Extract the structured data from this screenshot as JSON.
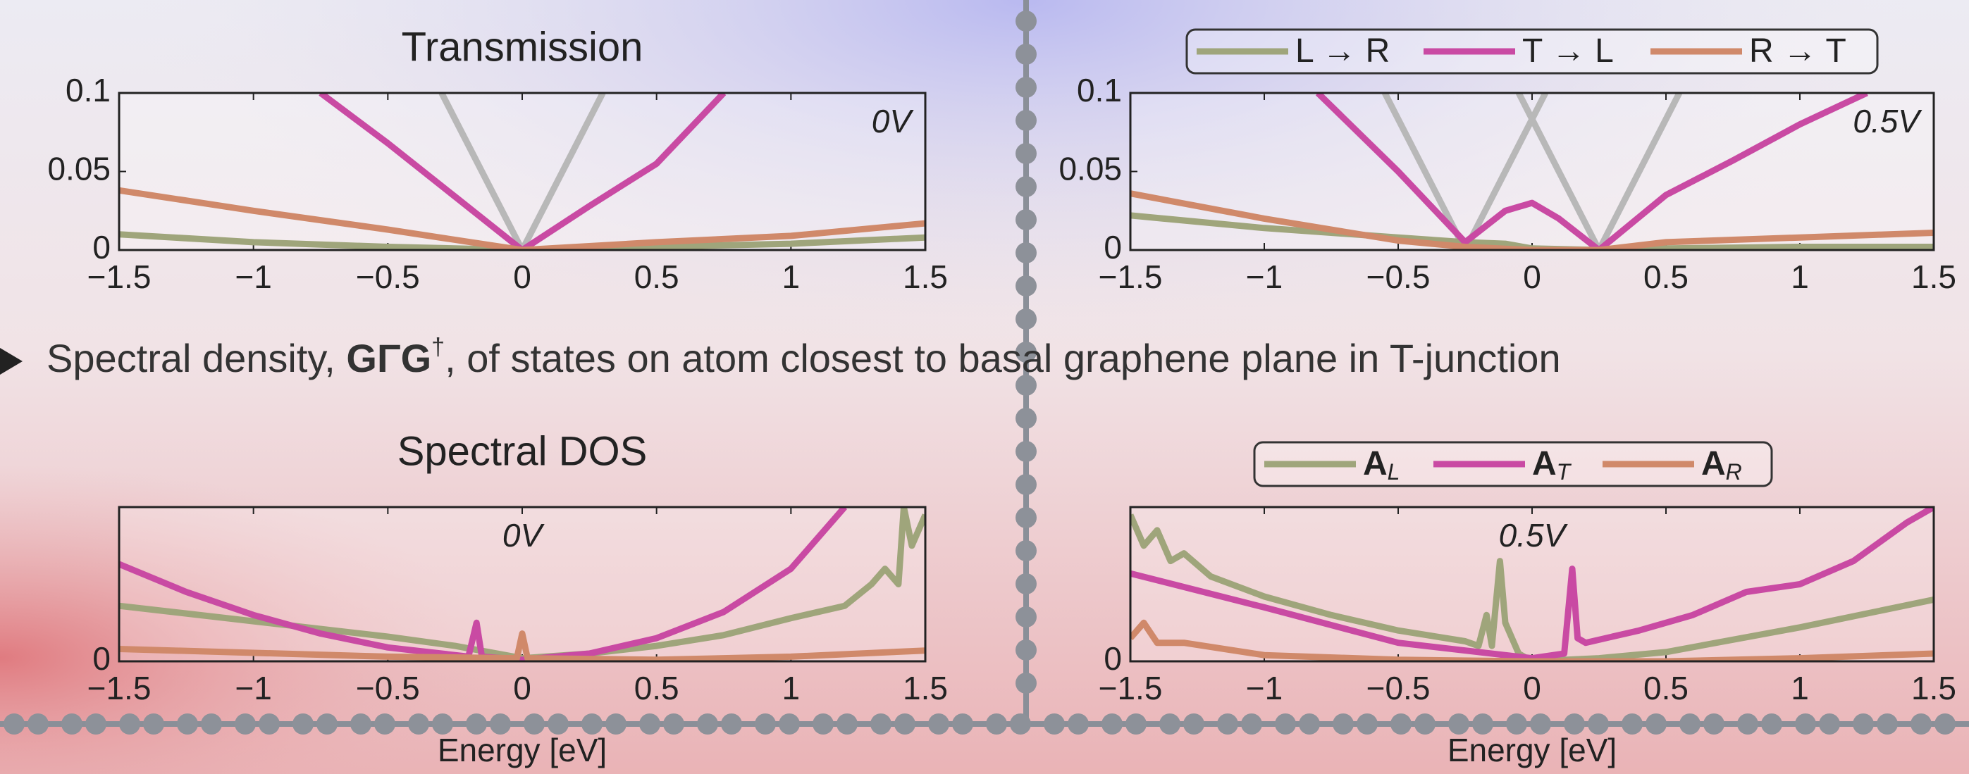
{
  "bullet": {
    "parts": [
      "Spectral density, ",
      "GΓG",
      "†",
      ", of states on atom closest to basal graphene plane in T-junction"
    ]
  },
  "chart_data": [
    {
      "type": "line",
      "title": "Transmission",
      "annotation": "0V",
      "xlim": [
        -1.5,
        1.5
      ],
      "ylim": [
        0,
        0.1
      ],
      "xticks": [
        {
          "value": -1.5,
          "label": "−1.5"
        },
        {
          "value": -1,
          "label": "−1"
        },
        {
          "value": -0.5,
          "label": "−0.5"
        },
        0,
        0.5,
        1,
        1.5
      ],
      "yticks": [
        0,
        0.05,
        0.1
      ],
      "series": [
        {
          "color": "#b8b8b8",
          "x": [
            -0.3,
            0
          ],
          "values": [
            0.1,
            0
          ]
        },
        {
          "color": "#b8b8b8",
          "x": [
            0,
            0.3
          ],
          "values": [
            0,
            0.1
          ]
        },
        {
          "color": "#9fa57b",
          "x": [
            -1.5,
            -1,
            -0.5,
            0,
            0.5,
            1,
            1.5
          ],
          "values": [
            0.01,
            0.005,
            0.002,
            0,
            0.002,
            0.004,
            0.008
          ]
        },
        {
          "color": "#c94aa3",
          "x": [
            -0.75,
            -0.5,
            -0.25,
            0,
            0.25,
            0.5,
            0.75
          ],
          "values": [
            0.1,
            0.068,
            0.034,
            0,
            0.028,
            0.055,
            0.1
          ]
        },
        {
          "color": "#d0896a",
          "x": [
            -1.5,
            -1,
            -0.5,
            0,
            0.5,
            1,
            1.5
          ],
          "values": [
            0.038,
            0.025,
            0.013,
            0,
            0.005,
            0.009,
            0.017
          ]
        }
      ]
    },
    {
      "type": "line",
      "annotation": "0.5V",
      "legend": "top",
      "xlim": [
        -1.5,
        1.5
      ],
      "ylim": [
        0,
        0.1
      ],
      "xticks": [
        {
          "value": -1.5,
          "label": "−1.5"
        },
        {
          "value": -1,
          "label": "−1"
        },
        {
          "value": -0.5,
          "label": "−0.5"
        },
        0,
        0.5,
        1,
        1.5
      ],
      "yticks": [
        0,
        0.05,
        0.1
      ],
      "series": [
        {
          "color": "#b8b8b8",
          "x": [
            -0.55,
            -0.25,
            0.05
          ],
          "values": [
            0.1,
            0,
            0.1
          ]
        },
        {
          "color": "#b8b8b8",
          "x": [
            -0.05,
            0.25,
            0.55
          ],
          "values": [
            0.1,
            0,
            0.1
          ]
        },
        {
          "name": "L → R",
          "color": "#9fa57b",
          "x": [
            -1.5,
            -1,
            -0.5,
            -0.25,
            -0.1,
            0,
            0.25,
            0.5,
            1,
            1.5
          ],
          "values": [
            0.022,
            0.014,
            0.008,
            0.005,
            0.004,
            0.001,
            0,
            0.001,
            0.002,
            0.002
          ]
        },
        {
          "name": "T → L",
          "color": "#c94aa3",
          "x": [
            -0.8,
            -0.5,
            -0.25,
            -0.1,
            0,
            0.1,
            0.25,
            0.5,
            0.75,
            1,
            1.25
          ],
          "values": [
            0.1,
            0.05,
            0.005,
            0.025,
            0.03,
            0.02,
            0,
            0.035,
            0.057,
            0.08,
            0.1
          ]
        },
        {
          "name": "R → T",
          "color": "#d0896a",
          "x": [
            -1.5,
            -1,
            -0.5,
            -0.25,
            0,
            0.25,
            0.5,
            1,
            1.5
          ],
          "values": [
            0.036,
            0.02,
            0.006,
            0.002,
            0,
            0,
            0.005,
            0.008,
            0.011
          ]
        }
      ]
    },
    {
      "type": "line",
      "title": "Spectral DOS",
      "annotation": "0V",
      "x_label": "Energy [eV]",
      "xlim": [
        -1.5,
        1.5
      ],
      "ylim": [
        0,
        1
      ],
      "xticks": [
        {
          "value": -1.5,
          "label": "−1.5"
        },
        {
          "value": -1,
          "label": "−1"
        },
        {
          "value": -0.5,
          "label": "−0.5"
        },
        0,
        0.5,
        1,
        1.5
      ],
      "yticks": [
        0
      ],
      "series": [
        {
          "color": "#9fa57b",
          "x": [
            -1.5,
            -1,
            -0.5,
            -0.25,
            0,
            0.25,
            0.5,
            0.75,
            1,
            1.2,
            1.3,
            1.35,
            1.4,
            1.42,
            1.45,
            1.5
          ],
          "values": [
            0.36,
            0.26,
            0.16,
            0.1,
            0.02,
            0.05,
            0.1,
            0.17,
            0.28,
            0.36,
            0.5,
            0.6,
            0.5,
            1.0,
            0.75,
            0.95
          ]
        },
        {
          "color": "#c94aa3",
          "x": [
            -1.5,
            -1.25,
            -1,
            -0.75,
            -0.5,
            -0.25,
            -0.2,
            -0.17,
            -0.15,
            0,
            0.25,
            0.5,
            0.75,
            1,
            1.2
          ],
          "values": [
            0.63,
            0.45,
            0.3,
            0.18,
            0.09,
            0.04,
            0.03,
            0.25,
            0.03,
            0.01,
            0.05,
            0.15,
            0.32,
            0.6,
            1.0
          ]
        },
        {
          "color": "#d0896a",
          "x": [
            -1.5,
            -0.5,
            -0.02,
            0,
            0.02,
            0.5,
            1,
            1.5
          ],
          "values": [
            0.08,
            0.03,
            0.02,
            0.18,
            0.02,
            0.01,
            0.03,
            0.07
          ]
        }
      ]
    },
    {
      "type": "line",
      "annotation": "0.5V",
      "x_label": "Energy [eV]",
      "legend": "top",
      "xlim": [
        -1.5,
        1.5
      ],
      "ylim": [
        0,
        1
      ],
      "xticks": [
        {
          "value": -1.5,
          "label": "−1.5"
        },
        {
          "value": -1,
          "label": "−1"
        },
        {
          "value": -0.5,
          "label": "−0.5"
        },
        0,
        0.5,
        1,
        1.5
      ],
      "yticks": [
        0
      ],
      "series": [
        {
          "name": "A",
          "subscript": "L",
          "color": "#9fa57b",
          "x": [
            -1.5,
            -1.45,
            -1.4,
            -1.35,
            -1.3,
            -1.2,
            -1,
            -0.75,
            -0.5,
            -0.25,
            -0.2,
            -0.17,
            -0.15,
            -0.12,
            -0.1,
            -0.05,
            0,
            0.25,
            0.5,
            1,
            1.5
          ],
          "values": [
            0.95,
            0.75,
            0.85,
            0.65,
            0.7,
            0.55,
            0.42,
            0.3,
            0.2,
            0.13,
            0.1,
            0.3,
            0.1,
            0.65,
            0.25,
            0.05,
            0,
            0.02,
            0.06,
            0.22,
            0.4
          ]
        },
        {
          "name": "A",
          "subscript": "T",
          "color": "#c94aa3",
          "x": [
            -1.5,
            -1,
            -0.5,
            0,
            0.12,
            0.15,
            0.17,
            0.2,
            0.4,
            0.6,
            0.8,
            1,
            1.2,
            1.4,
            1.5
          ],
          "values": [
            0.57,
            0.35,
            0.12,
            0.02,
            0.05,
            0.6,
            0.15,
            0.12,
            0.2,
            0.3,
            0.45,
            0.5,
            0.65,
            0.9,
            1.0
          ]
        },
        {
          "name": "A",
          "subscript": "R",
          "color": "#d0896a",
          "x": [
            -1.5,
            -1.45,
            -1.4,
            -1.3,
            -1,
            -0.5,
            0,
            0.5,
            1,
            1.5
          ],
          "values": [
            0.15,
            0.25,
            0.12,
            0.12,
            0.04,
            0.01,
            0,
            0,
            0.02,
            0.05
          ]
        }
      ]
    }
  ]
}
